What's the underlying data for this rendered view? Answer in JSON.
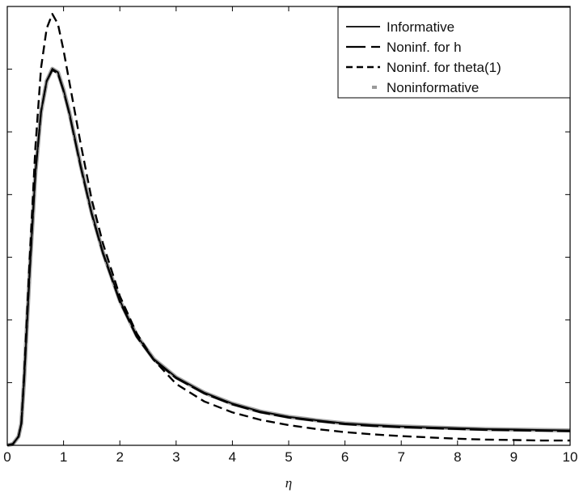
{
  "chart_data": {
    "type": "line",
    "title": "",
    "xlabel": "η",
    "ylabel": "",
    "xlim": [
      0,
      10
    ],
    "ylim": [
      0,
      1
    ],
    "xticks": [
      0,
      1,
      2,
      3,
      4,
      5,
      6,
      7,
      8,
      9,
      10
    ],
    "yticks": [
      0.1429,
      0.2857,
      0.4286,
      0.5714,
      0.7143,
      0.8571
    ],
    "legend_position": "top-right",
    "grid": false,
    "colors": {
      "informative": "#000000",
      "noninf_h": "#000000",
      "noninf_theta": "#000000",
      "noninformative": "#9a9a9a"
    },
    "x": [
      0,
      0.1,
      0.2,
      0.25,
      0.3,
      0.4,
      0.5,
      0.6,
      0.7,
      0.8,
      0.9,
      1.0,
      1.1,
      1.2,
      1.3,
      1.5,
      1.7,
      2.0,
      2.3,
      2.6,
      3.0,
      3.5,
      4.0,
      4.5,
      5.0,
      5.5,
      6.0,
      6.5,
      7.0,
      7.5,
      8.0,
      8.5,
      9.0,
      9.5,
      10.0
    ],
    "series": [
      {
        "name": "Informative",
        "style": "solid",
        "values": [
          0.0,
          0.003,
          0.02,
          0.05,
          0.15,
          0.4,
          0.62,
          0.76,
          0.83,
          0.858,
          0.85,
          0.81,
          0.76,
          0.7,
          0.64,
          0.53,
          0.44,
          0.33,
          0.25,
          0.197,
          0.155,
          0.12,
          0.095,
          0.077,
          0.065,
          0.057,
          0.05,
          0.046,
          0.043,
          0.041,
          0.039,
          0.037,
          0.036,
          0.035,
          0.034
        ]
      },
      {
        "name": "Noninf. for h",
        "style": "longdash",
        "values": [
          0.0,
          0.003,
          0.02,
          0.05,
          0.15,
          0.4,
          0.62,
          0.76,
          0.83,
          0.855,
          0.847,
          0.807,
          0.757,
          0.697,
          0.637,
          0.527,
          0.437,
          0.327,
          0.247,
          0.195,
          0.153,
          0.118,
          0.093,
          0.075,
          0.063,
          0.055,
          0.048,
          0.044,
          0.041,
          0.039,
          0.037,
          0.035,
          0.034,
          0.033,
          0.032
        ]
      },
      {
        "name": "Noninf. for theta(1)",
        "style": "dash",
        "values": [
          0.0,
          0.003,
          0.02,
          0.05,
          0.16,
          0.43,
          0.68,
          0.86,
          0.95,
          0.983,
          0.96,
          0.9,
          0.83,
          0.76,
          0.69,
          0.56,
          0.46,
          0.34,
          0.255,
          0.195,
          0.14,
          0.1,
          0.075,
          0.058,
          0.046,
          0.037,
          0.03,
          0.025,
          0.021,
          0.018,
          0.015,
          0.013,
          0.012,
          0.011,
          0.011
        ]
      },
      {
        "name": "Noninformative",
        "style": "gray",
        "values": [
          0.0,
          0.003,
          0.02,
          0.05,
          0.15,
          0.4,
          0.62,
          0.76,
          0.83,
          0.858,
          0.85,
          0.81,
          0.76,
          0.7,
          0.64,
          0.53,
          0.44,
          0.33,
          0.25,
          0.197,
          0.155,
          0.12,
          0.095,
          0.077,
          0.065,
          0.057,
          0.05,
          0.046,
          0.043,
          0.041,
          0.039,
          0.037,
          0.036,
          0.035,
          0.034
        ]
      }
    ]
  }
}
